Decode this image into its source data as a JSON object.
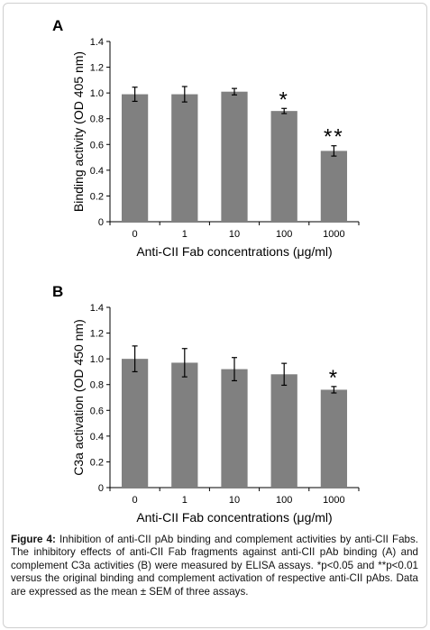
{
  "panel_a": {
    "label": "A"
  },
  "panel_b": {
    "label": "B"
  },
  "chart_data": [
    {
      "type": "bar",
      "categories": [
        "0",
        "1",
        "10",
        "100",
        "1000"
      ],
      "values": [
        0.99,
        0.99,
        1.01,
        0.86,
        0.55
      ],
      "errors": [
        0.055,
        0.06,
        0.025,
        0.02,
        0.04
      ],
      "annotations": [
        "",
        "",
        "",
        "*",
        "**"
      ],
      "xlabel": "Anti-CII Fab concentrations (μg/ml)",
      "ylabel": "Binding activity (OD 405 nm)",
      "ylim": [
        0,
        1.4
      ],
      "yticks": [
        "0",
        "0.2",
        "0.4",
        "0.6",
        "0.8",
        "1.0",
        "1.2",
        "1.4"
      ],
      "bar_color": "#808080",
      "grid": false
    },
    {
      "type": "bar",
      "categories": [
        "0",
        "1",
        "10",
        "100",
        "1000"
      ],
      "values": [
        1.0,
        0.97,
        0.92,
        0.88,
        0.76
      ],
      "errors": [
        0.1,
        0.11,
        0.09,
        0.085,
        0.025
      ],
      "annotations": [
        "",
        "",
        "",
        "",
        "*"
      ],
      "xlabel": "Anti-CII Fab concentrations (μg/ml)",
      "ylabel": "C3a activation (OD 450 nm)",
      "ylim": [
        0,
        1.4
      ],
      "yticks": [
        "0",
        "0.2",
        "0.4",
        "0.6",
        "0.8",
        "1.0",
        "1.2",
        "1.4"
      ],
      "bar_color": "#808080",
      "grid": false
    }
  ],
  "caption": {
    "label": "Figure 4:",
    "text": " Inhibition of anti-CII pAb binding and complement activities by anti-CII Fabs. The inhibitory effects of anti-CII Fab fragments against anti-CII pAb binding (A) and complement C3a activities (B) were measured by ELISA assays. *p<0.05 and **p<0.01 versus the original binding and complement activation of respective anti-CII pAbs. Data are expressed as the mean ± SEM of three assays."
  }
}
